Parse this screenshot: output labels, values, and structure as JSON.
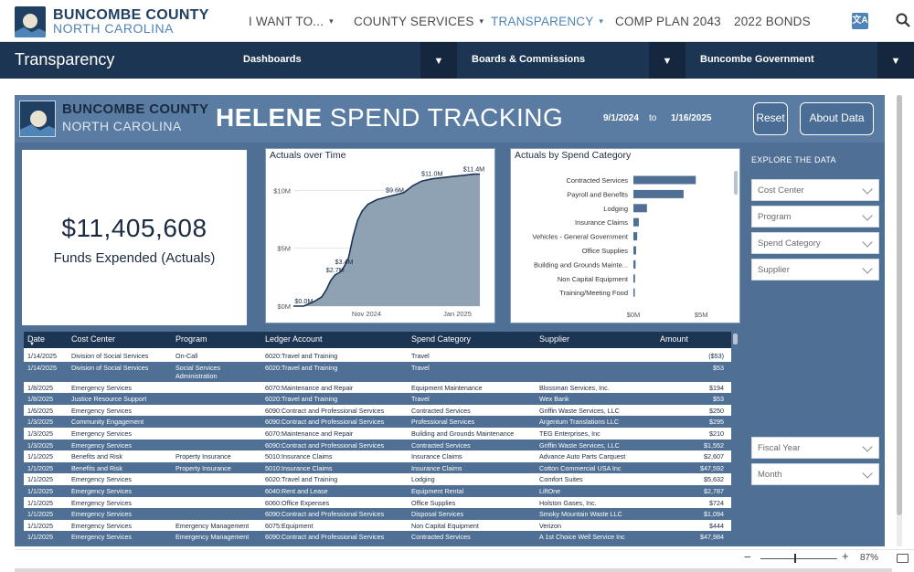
{
  "site": {
    "logo_line1": "BUNCOMBE COUNTY",
    "logo_line2": "NORTH CAROLINA",
    "nav": [
      {
        "label": "I WANT TO...",
        "caret": true,
        "active": false
      },
      {
        "label": "COUNTY SERVICES",
        "caret": true,
        "active": false
      },
      {
        "label": "TRANSPARENCY",
        "caret": true,
        "active": true
      },
      {
        "label": "COMP PLAN 2043",
        "caret": false,
        "active": false
      },
      {
        "label": "2022 BONDS",
        "caret": false,
        "active": false
      }
    ],
    "translate_icon_text": "文A"
  },
  "section": {
    "title": "Transparency",
    "dropdowns": [
      "Dashboards",
      "Boards & Commissions",
      "Buncombe Government"
    ],
    "dropdown_caret": "▼"
  },
  "report": {
    "logo_line1": "BUNCOMBE COUNTY",
    "logo_line2": "NORTH CAROLINA",
    "title_bold": "HELENE",
    "title_rest": " SPEND TRACKING",
    "date_start": "9/1/2024",
    "date_to": "to",
    "date_end": "1/16/2025",
    "reset_label": "Reset",
    "about_label": "About Data",
    "kpi_value": "$11,405,608",
    "kpi_label": "Funds Expended (Actuals)",
    "explore_title": "EXPLORE THE DATA",
    "filters_top": [
      "Cost Center",
      "Program",
      "Spend Category",
      "Supplier"
    ],
    "filters_bottom": [
      "Fiscal Year",
      "Month"
    ]
  },
  "chart_data": [
    {
      "type": "area",
      "title": "Actuals over Time",
      "x_tick_labels": [
        "Nov 2024",
        "Jan 2025"
      ],
      "y_tick_labels": [
        "$0M",
        "$5M",
        "$10M"
      ],
      "ylim": [
        0,
        12
      ],
      "y_unit": "$M",
      "grid": true,
      "points": [
        {
          "x": "2024-09-13",
          "y": 0.0
        },
        {
          "x": "2024-09-20",
          "y": 0.0
        },
        {
          "x": "2024-09-27",
          "y": 0.4
        },
        {
          "x": "2024-10-02",
          "y": 0.8
        },
        {
          "x": "2024-10-05",
          "y": 1.4
        },
        {
          "x": "2024-10-08",
          "y": 2.2
        },
        {
          "x": "2024-10-11",
          "y": 2.7
        },
        {
          "x": "2024-10-14",
          "y": 2.9
        },
        {
          "x": "2024-10-17",
          "y": 3.4
        },
        {
          "x": "2024-10-20",
          "y": 4.2
        },
        {
          "x": "2024-10-23",
          "y": 6.0
        },
        {
          "x": "2024-10-26",
          "y": 7.4
        },
        {
          "x": "2024-10-29",
          "y": 8.2
        },
        {
          "x": "2024-11-02",
          "y": 8.8
        },
        {
          "x": "2024-11-08",
          "y": 9.2
        },
        {
          "x": "2024-11-14",
          "y": 9.4
        },
        {
          "x": "2024-11-20",
          "y": 9.6
        },
        {
          "x": "2024-11-26",
          "y": 9.8
        },
        {
          "x": "2024-12-02",
          "y": 10.4
        },
        {
          "x": "2024-12-08",
          "y": 10.8
        },
        {
          "x": "2024-12-15",
          "y": 11.0
        },
        {
          "x": "2024-12-22",
          "y": 11.1
        },
        {
          "x": "2024-12-29",
          "y": 11.2
        },
        {
          "x": "2025-01-05",
          "y": 11.3
        },
        {
          "x": "2025-01-12",
          "y": 11.4
        },
        {
          "x": "2025-01-16",
          "y": 11.4
        }
      ],
      "labels": [
        {
          "x": "2024-09-20",
          "y": 0.0,
          "text": "$0.0M"
        },
        {
          "x": "2024-10-11",
          "y": 2.7,
          "text": "$2.7M"
        },
        {
          "x": "2024-10-17",
          "y": 3.4,
          "text": "$3.4M"
        },
        {
          "x": "2024-11-20",
          "y": 9.6,
          "text": "$9.6M"
        },
        {
          "x": "2024-12-15",
          "y": 11.0,
          "text": "$11.0M"
        },
        {
          "x": "2025-01-12",
          "y": 11.4,
          "text": "$11.4M"
        }
      ]
    },
    {
      "type": "bar",
      "orientation": "horizontal",
      "title": "Actuals by Spend Category",
      "x_tick_labels": [
        "$0M",
        "$5M"
      ],
      "xlim": [
        0,
        6.2
      ],
      "x_unit": "$M",
      "categories": [
        "Contracted Services",
        "Payroll and Benefits",
        "Lodging",
        "Insurance Claims",
        "Vehicles - General Government",
        "Office Supplies",
        "Building and Grounds Mainte...",
        "Non Capital Equipment",
        "Training/Meeting Food"
      ],
      "values": [
        4.6,
        3.7,
        1.0,
        0.4,
        0.28,
        0.2,
        0.16,
        0.12,
        0.1
      ]
    }
  ],
  "table": {
    "columns": [
      "Date",
      "Cost Center",
      "Program",
      "Ledger Account",
      "Spend Category",
      "Supplier",
      "Amount"
    ],
    "rows": [
      [
        "1/14/2025",
        "Division of Social Services",
        "On-Call",
        "6020:Travel and Training",
        "Travel",
        "",
        "($53)"
      ],
      [
        "1/14/2025",
        "Division of Social Services",
        "Social Services Administration",
        "6020:Travel and Training",
        "Travel",
        "",
        "$53"
      ],
      [
        "1/8/2025",
        "Emergency Services",
        "",
        "6070:Maintenance and Repair",
        "Equipment Maintenance",
        "Blossman Services, Inc.",
        "$194"
      ],
      [
        "1/8/2025",
        "Justice Resource Support",
        "",
        "6020:Travel and Training",
        "Travel",
        "Wex Bank",
        "$53"
      ],
      [
        "1/6/2025",
        "Emergency Services",
        "",
        "6090:Contract and Professional Services",
        "Contracted Services",
        "Griffin Waste Services, LLC",
        "$250"
      ],
      [
        "1/3/2025",
        "Community Engagement",
        "",
        "6090:Contract and Professional Services",
        "Professional Services",
        "Argentum Translations LLC",
        "$295"
      ],
      [
        "1/3/2025",
        "Emergency Services",
        "",
        "6070:Maintenance and Repair",
        "Building and Grounds Maintenance",
        "TEG Enterprises, Inc",
        "$210"
      ],
      [
        "1/3/2025",
        "Emergency Services",
        "",
        "6090:Contract and Professional Services",
        "Contracted Services",
        "Griffin Waste Services, LLC",
        "$1,552"
      ],
      [
        "1/1/2025",
        "Benefits and Risk",
        "Property Insurance",
        "5010:Insurance Claims",
        "Insurance Claims",
        "Advance Auto Parts Carquest",
        "$2,607"
      ],
      [
        "1/1/2025",
        "Benefits and Risk",
        "Property Insurance",
        "5010:Insurance Claims",
        "Insurance Claims",
        "Cotton Commercial USA Inc",
        "$47,592"
      ],
      [
        "1/1/2025",
        "Emergency Services",
        "",
        "6020:Travel and Training",
        "Lodging",
        "Comfort Suites",
        "$5,632"
      ],
      [
        "1/1/2025",
        "Emergency Services",
        "",
        "6040:Rent and Lease",
        "Equipment Rental",
        "LiftOne",
        "$2,787"
      ],
      [
        "1/1/2025",
        "Emergency Services",
        "",
        "6060:Office Expenses",
        "Office Supplies",
        "Holston Gases, Inc.",
        "$724"
      ],
      [
        "1/1/2025",
        "Emergency Services",
        "",
        "6090:Contract and Professional Services",
        "Disposal Services",
        "Smoky Mountain Waste LLC",
        "$1,094"
      ],
      [
        "1/1/2025",
        "Emergency Services",
        "Emergency Management",
        "6075:Equipment",
        "Non Capital Equipment",
        "Verizon",
        "$444"
      ],
      [
        "1/1/2025",
        "Emergency Services",
        "Emergency Management",
        "6090:Contract and Professional Services",
        "Contracted Services",
        "A 1st Choice Well Service Inc",
        "$47,984"
      ]
    ]
  },
  "status": {
    "zoom_minus": "−",
    "zoom_plus": "+",
    "zoom_pct": "87%",
    "zoom_fraction": 0.44
  }
}
